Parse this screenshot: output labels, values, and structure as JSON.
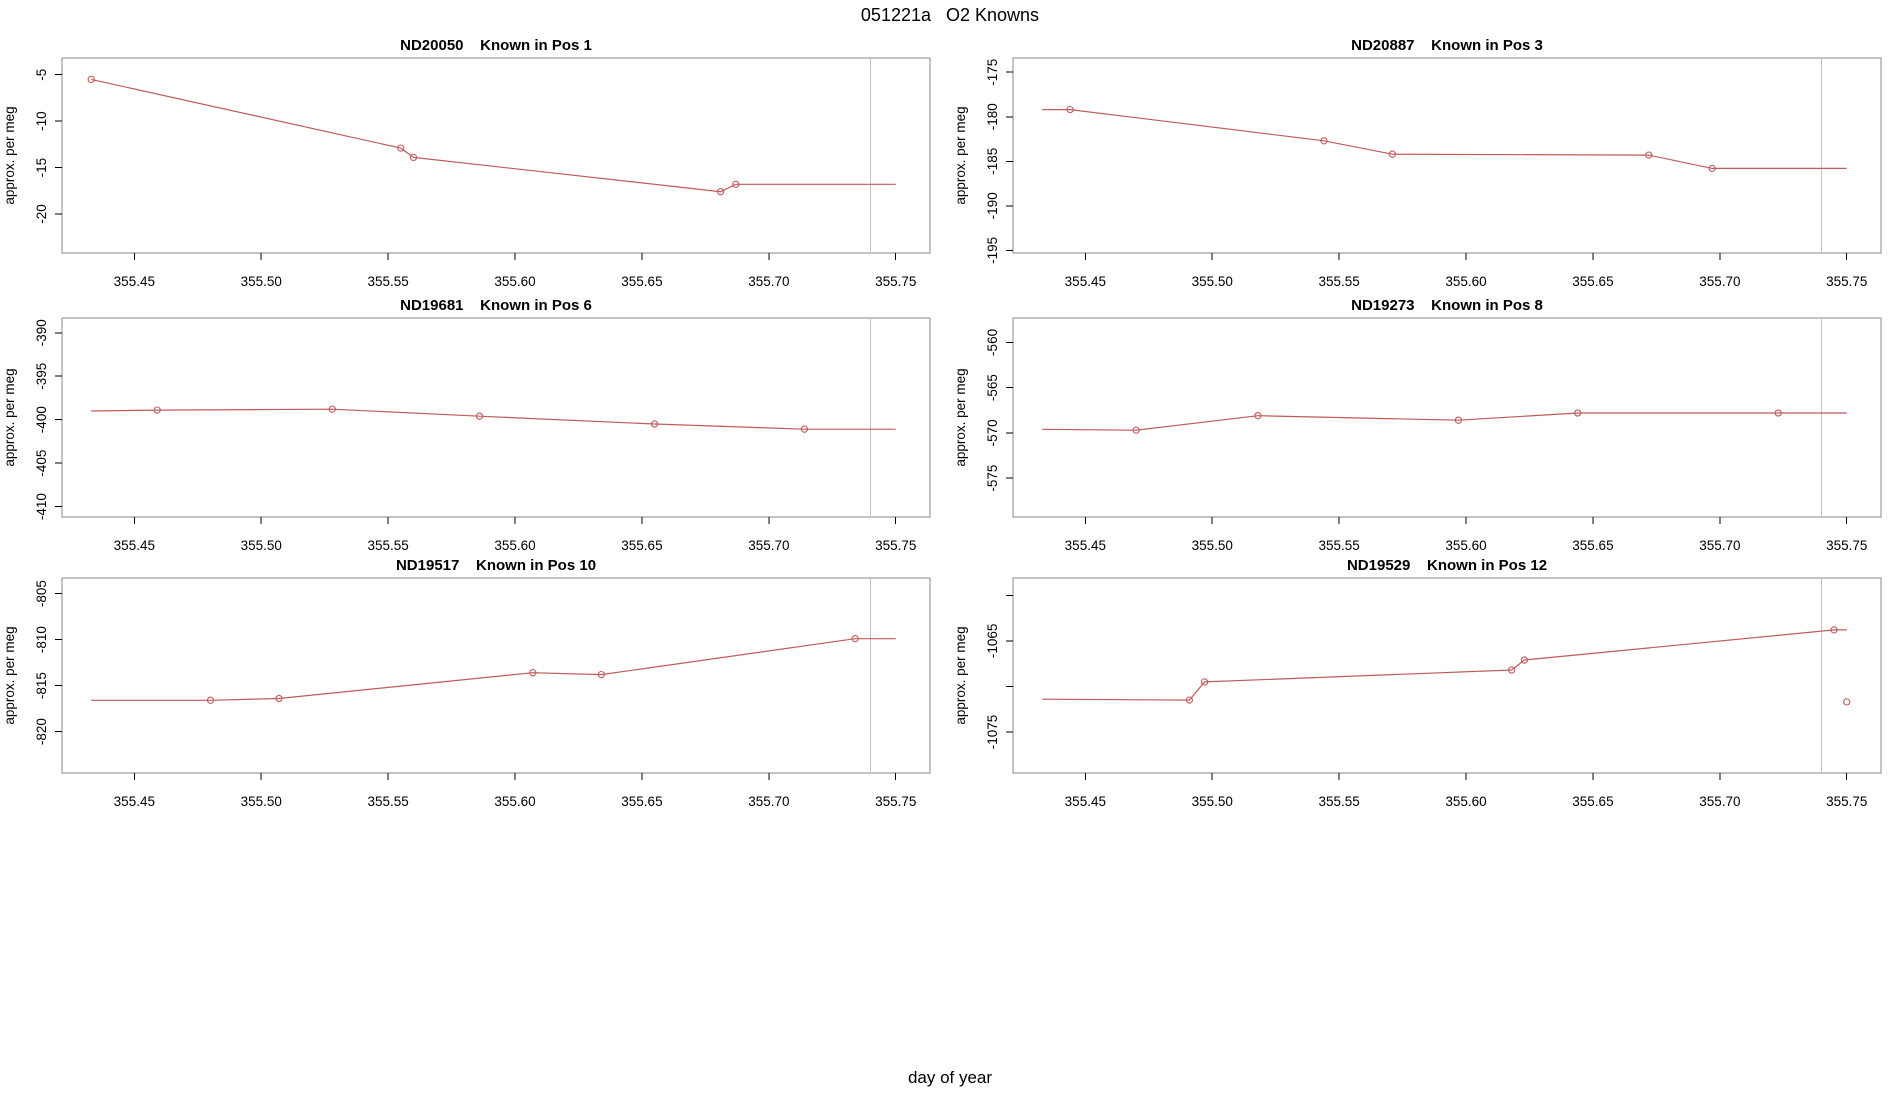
{
  "page": {
    "background": "#ffffff"
  },
  "colors": {
    "series": "#c25b5b",
    "vline": "#c4c4c4",
    "box_border": "#8a8a8a",
    "tick": "#000000",
    "text": "#000000"
  },
  "chart_data": {
    "type": "line",
    "title": "051221a   O2 Knowns",
    "xlabel": "day of year",
    "ylabel": "approx. per meg",
    "grid": false,
    "legend": "none",
    "xlim": [
      355.4215,
      355.7635
    ],
    "x_ticks": [
      355.45,
      355.5,
      355.55,
      355.6,
      355.65,
      355.7,
      355.75
    ],
    "x_tick_labels": [
      "355.45",
      "355.50",
      "355.55",
      "355.60",
      "355.65",
      "355.70",
      "355.75"
    ],
    "vline_x": 355.74,
    "subplots": [
      {
        "id": "ND20050",
        "position_label": "Known in Pos 1",
        "title": "ND20050    Known in Pos 1",
        "known_position": 1,
        "ylim": [
          -24.2,
          -3.2
        ],
        "y_ticks": [
          -5,
          -10,
          -15,
          -20
        ],
        "y_tick_labels": [
          "-5",
          "-10",
          "-15",
          "-20"
        ],
        "line": [
          [
            355.433,
            -5.5
          ],
          [
            355.555,
            -12.9
          ],
          [
            355.56,
            -13.9
          ],
          [
            355.681,
            -17.6
          ],
          [
            355.687,
            -16.8
          ],
          [
            355.75,
            -16.8
          ]
        ],
        "markers": [
          [
            355.433,
            -5.5
          ],
          [
            355.555,
            -12.9
          ],
          [
            355.56,
            -13.9
          ],
          [
            355.681,
            -17.6
          ],
          [
            355.687,
            -16.8
          ]
        ],
        "isolated_markers": []
      },
      {
        "id": "ND20887",
        "position_label": "Known in Pos 3",
        "title": "ND20887    Known in Pos 3",
        "known_position": 3,
        "ylim": [
          -195.3,
          -173.4
        ],
        "y_ticks": [
          -175,
          -180,
          -185,
          -190,
          -195
        ],
        "y_tick_labels": [
          "-175",
          "-180",
          "-185",
          "-190",
          "-195"
        ],
        "line": [
          [
            355.433,
            -179.2
          ],
          [
            355.444,
            -179.2
          ],
          [
            355.544,
            -182.7
          ],
          [
            355.571,
            -184.2
          ],
          [
            355.672,
            -184.3
          ],
          [
            355.697,
            -185.8
          ],
          [
            355.75,
            -185.8
          ]
        ],
        "markers": [
          [
            355.444,
            -179.2
          ],
          [
            355.544,
            -182.7
          ],
          [
            355.571,
            -184.2
          ],
          [
            355.672,
            -184.3
          ],
          [
            355.697,
            -185.8
          ]
        ],
        "isolated_markers": []
      },
      {
        "id": "ND19681",
        "position_label": "Known in Pos 6",
        "title": "ND19681    Known in Pos 6",
        "known_position": 6,
        "ylim": [
          -411.2,
          -388.3
        ],
        "y_ticks": [
          -390,
          -395,
          -400,
          -405,
          -410
        ],
        "y_tick_labels": [
          "-390",
          "-395",
          "-400",
          "-405",
          "-410"
        ],
        "line": [
          [
            355.433,
            -399.0
          ],
          [
            355.459,
            -398.9
          ],
          [
            355.528,
            -398.8
          ],
          [
            355.586,
            -399.6
          ],
          [
            355.655,
            -400.5
          ],
          [
            355.714,
            -401.1
          ],
          [
            355.75,
            -401.1
          ]
        ],
        "markers": [
          [
            355.459,
            -398.9
          ],
          [
            355.528,
            -398.8
          ],
          [
            355.586,
            -399.6
          ],
          [
            355.655,
            -400.5
          ],
          [
            355.714,
            -401.1
          ]
        ],
        "isolated_markers": []
      },
      {
        "id": "ND19273",
        "position_label": "Known in Pos 8",
        "title": "ND19273    Known in Pos 8",
        "known_position": 8,
        "ylim": [
          -579.3,
          -557.3
        ],
        "y_ticks": [
          -560,
          -565,
          -570,
          -575
        ],
        "y_tick_labels": [
          "-560",
          "-565",
          "-570",
          "-575"
        ],
        "line": [
          [
            355.433,
            -569.6
          ],
          [
            355.47,
            -569.7
          ],
          [
            355.518,
            -568.1
          ],
          [
            355.597,
            -568.6
          ],
          [
            355.644,
            -567.8
          ],
          [
            355.723,
            -567.8
          ],
          [
            355.75,
            -567.8
          ]
        ],
        "markers": [
          [
            355.47,
            -569.7
          ],
          [
            355.518,
            -568.1
          ],
          [
            355.597,
            -568.6
          ],
          [
            355.644,
            -567.8
          ],
          [
            355.723,
            -567.8
          ]
        ],
        "isolated_markers": []
      },
      {
        "id": "ND19517",
        "position_label": "Known in Pos 10",
        "title": "ND19517    Known in Pos 10",
        "known_position": 10,
        "ylim": [
          -824.5,
          -803.3
        ],
        "y_ticks": [
          -805,
          -810,
          -815,
          -820
        ],
        "y_tick_labels": [
          "-805",
          "-810",
          "-815",
          "-820"
        ],
        "line": [
          [
            355.433,
            -816.6
          ],
          [
            355.48,
            -816.6
          ],
          [
            355.507,
            -816.4
          ],
          [
            355.607,
            -813.6
          ],
          [
            355.634,
            -813.8
          ],
          [
            355.734,
            -809.9
          ],
          [
            355.75,
            -809.9
          ]
        ],
        "markers": [
          [
            355.48,
            -816.6
          ],
          [
            355.507,
            -816.4
          ],
          [
            355.607,
            -813.6
          ],
          [
            355.634,
            -813.8
          ],
          [
            355.734,
            -809.9
          ]
        ],
        "isolated_markers": []
      },
      {
        "id": "ND19529",
        "position_label": "Known in Pos 12",
        "title": "ND19529    Known in Pos 12",
        "known_position": 12,
        "ylim": [
          -1079.5,
          -1058.1
        ],
        "y_ticks": [
          -1060,
          -1065,
          -1070,
          -1075
        ],
        "y_tick_labels": [
          "",
          "-1065",
          "",
          "-1075"
        ],
        "line": [
          [
            355.433,
            -1071.4
          ],
          [
            355.491,
            -1071.5
          ],
          [
            355.497,
            -1069.5
          ],
          [
            355.618,
            -1068.2
          ],
          [
            355.623,
            -1067.1
          ],
          [
            355.745,
            -1063.8
          ],
          [
            355.75,
            -1063.8
          ]
        ],
        "markers": [
          [
            355.491,
            -1071.5
          ],
          [
            355.497,
            -1069.5
          ],
          [
            355.618,
            -1068.2
          ],
          [
            355.623,
            -1067.1
          ],
          [
            355.745,
            -1063.8
          ]
        ],
        "isolated_markers": [
          [
            355.75,
            -1071.7
          ]
        ]
      }
    ]
  }
}
